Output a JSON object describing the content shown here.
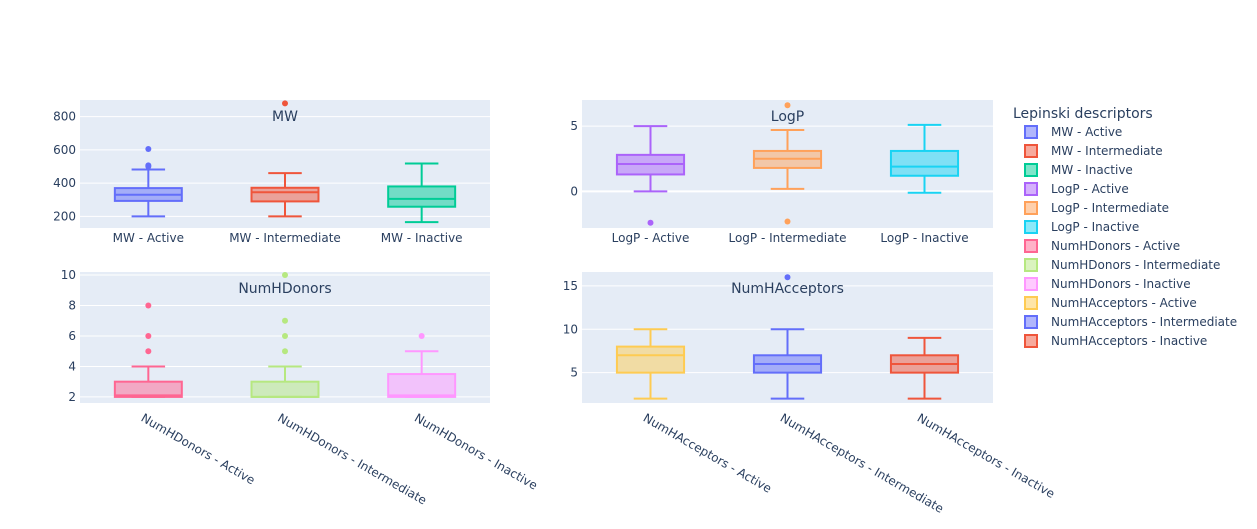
{
  "legend": {
    "title": "Lepinski descriptors",
    "position": "right"
  },
  "chart_data": [
    {
      "type": "box",
      "title": "MW",
      "ylim": [
        130,
        900
      ],
      "yticks": [
        200,
        400,
        600,
        800
      ],
      "grid": true,
      "boxes": [
        {
          "name": "MW - Active",
          "color": "#636efa",
          "min": 200,
          "q1": 293,
          "median": 330,
          "q3": 370,
          "max": 482,
          "outliers": [
            500,
            507,
            605
          ]
        },
        {
          "name": "MW - Intermediate",
          "color": "#EF553B",
          "min": 200,
          "q1": 290,
          "median": 345,
          "q3": 372,
          "max": 460,
          "outliers": [
            880
          ]
        },
        {
          "name": "MW - Inactive",
          "color": "#00cc96",
          "min": 165,
          "q1": 258,
          "median": 305,
          "q3": 380,
          "max": 518,
          "outliers": []
        }
      ]
    },
    {
      "type": "box",
      "title": "LogP",
      "ylim": [
        -2.8,
        7.0
      ],
      "yticks": [
        0,
        5
      ],
      "grid": true,
      "boxes": [
        {
          "name": "LogP - Active",
          "color": "#ab63fa",
          "min": 0.0,
          "q1": 1.3,
          "median": 2.1,
          "q3": 2.8,
          "max": 5.0,
          "outliers": [
            -2.4
          ]
        },
        {
          "name": "LogP - Intermediate",
          "color": "#FFA15A",
          "min": 0.2,
          "q1": 1.8,
          "median": 2.5,
          "q3": 3.1,
          "max": 4.7,
          "outliers": [
            6.6,
            -2.3
          ]
        },
        {
          "name": "LogP - Inactive",
          "color": "#19d3f3",
          "min": -0.1,
          "q1": 1.2,
          "median": 1.9,
          "q3": 3.1,
          "max": 5.1,
          "outliers": []
        }
      ]
    },
    {
      "type": "box",
      "title": "NumHDonors",
      "ylim": [
        1.6,
        10.2
      ],
      "yticks": [
        2,
        4,
        6,
        8,
        10
      ],
      "grid": true,
      "boxes": [
        {
          "name": "NumHDonors - Active",
          "color": "#FF6692",
          "min": 2,
          "q1": 2,
          "median": 2.1,
          "q3": 3,
          "max": 4,
          "outliers": [
            5,
            6,
            8
          ]
        },
        {
          "name": "NumHDonors - Intermediate",
          "color": "#B6E880",
          "min": 2,
          "q1": 2,
          "median": 2,
          "q3": 3,
          "max": 4,
          "outliers": [
            5,
            6,
            7,
            10
          ]
        },
        {
          "name": "NumHDonors - Inactive",
          "color": "#FF97FF",
          "min": 2,
          "q1": 2,
          "median": 2.1,
          "q3": 3.5,
          "max": 5,
          "outliers": [
            6
          ]
        }
      ]
    },
    {
      "type": "box",
      "title": "NumHAcceptors",
      "ylim": [
        1.5,
        16.6
      ],
      "yticks": [
        5,
        10,
        15
      ],
      "grid": true,
      "boxes": [
        {
          "name": "NumHAcceptors - Active",
          "color": "#FECB52",
          "min": 2,
          "q1": 5,
          "median": 7,
          "q3": 8,
          "max": 10,
          "outliers": []
        },
        {
          "name": "NumHAcceptors - Intermediate",
          "color": "#636efa",
          "min": 2,
          "q1": 5,
          "median": 6,
          "q3": 7,
          "max": 10,
          "outliers": [
            16
          ]
        },
        {
          "name": "NumHAcceptors - Inactive",
          "color": "#EF553B",
          "min": 2,
          "q1": 5,
          "median": 6,
          "q3": 7,
          "max": 9,
          "outliers": []
        }
      ]
    }
  ]
}
